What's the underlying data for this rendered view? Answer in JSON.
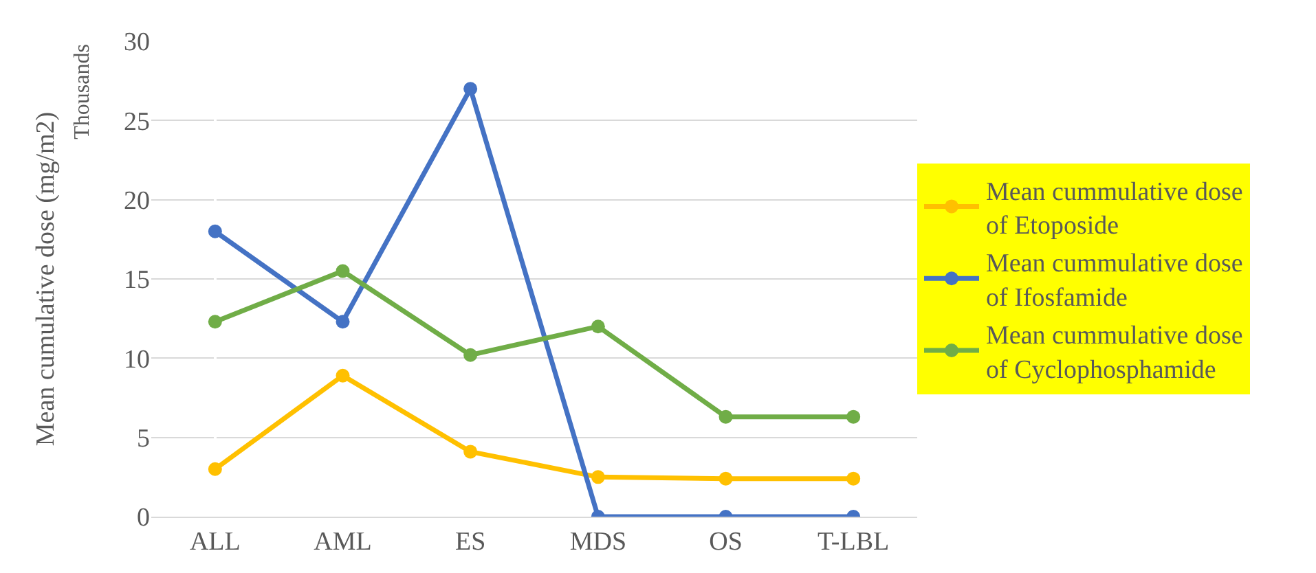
{
  "chart_data": {
    "type": "line",
    "ylabel": "Mean cumulative dose (mg/m2)",
    "annotations": [
      "Thousands"
    ],
    "categories": [
      "ALL",
      "AML",
      "ES",
      "MDS",
      "OS",
      "T-LBL"
    ],
    "series": [
      {
        "name": "Mean cummulative dose of Etoposide",
        "color": "#ffc000",
        "values": [
          3.0,
          8.9,
          4.1,
          2.5,
          2.4,
          2.4
        ]
      },
      {
        "name": "Mean cummulative dose of Ifosfamide",
        "color": "#4472c4",
        "values": [
          18.0,
          12.3,
          27.0,
          0,
          0,
          0
        ]
      },
      {
        "name": "Mean cummulative dose of Cyclophosphamide",
        "color": "#70ad47",
        "values": [
          12.3,
          15.5,
          10.2,
          12.0,
          6.3,
          6.3
        ]
      }
    ],
    "ylim": [
      0,
      30
    ],
    "yticks": [
      0,
      5,
      10,
      15,
      20,
      25,
      30
    ],
    "grid": "y",
    "legend": "right",
    "marker": "circle",
    "line_style": "solid"
  }
}
